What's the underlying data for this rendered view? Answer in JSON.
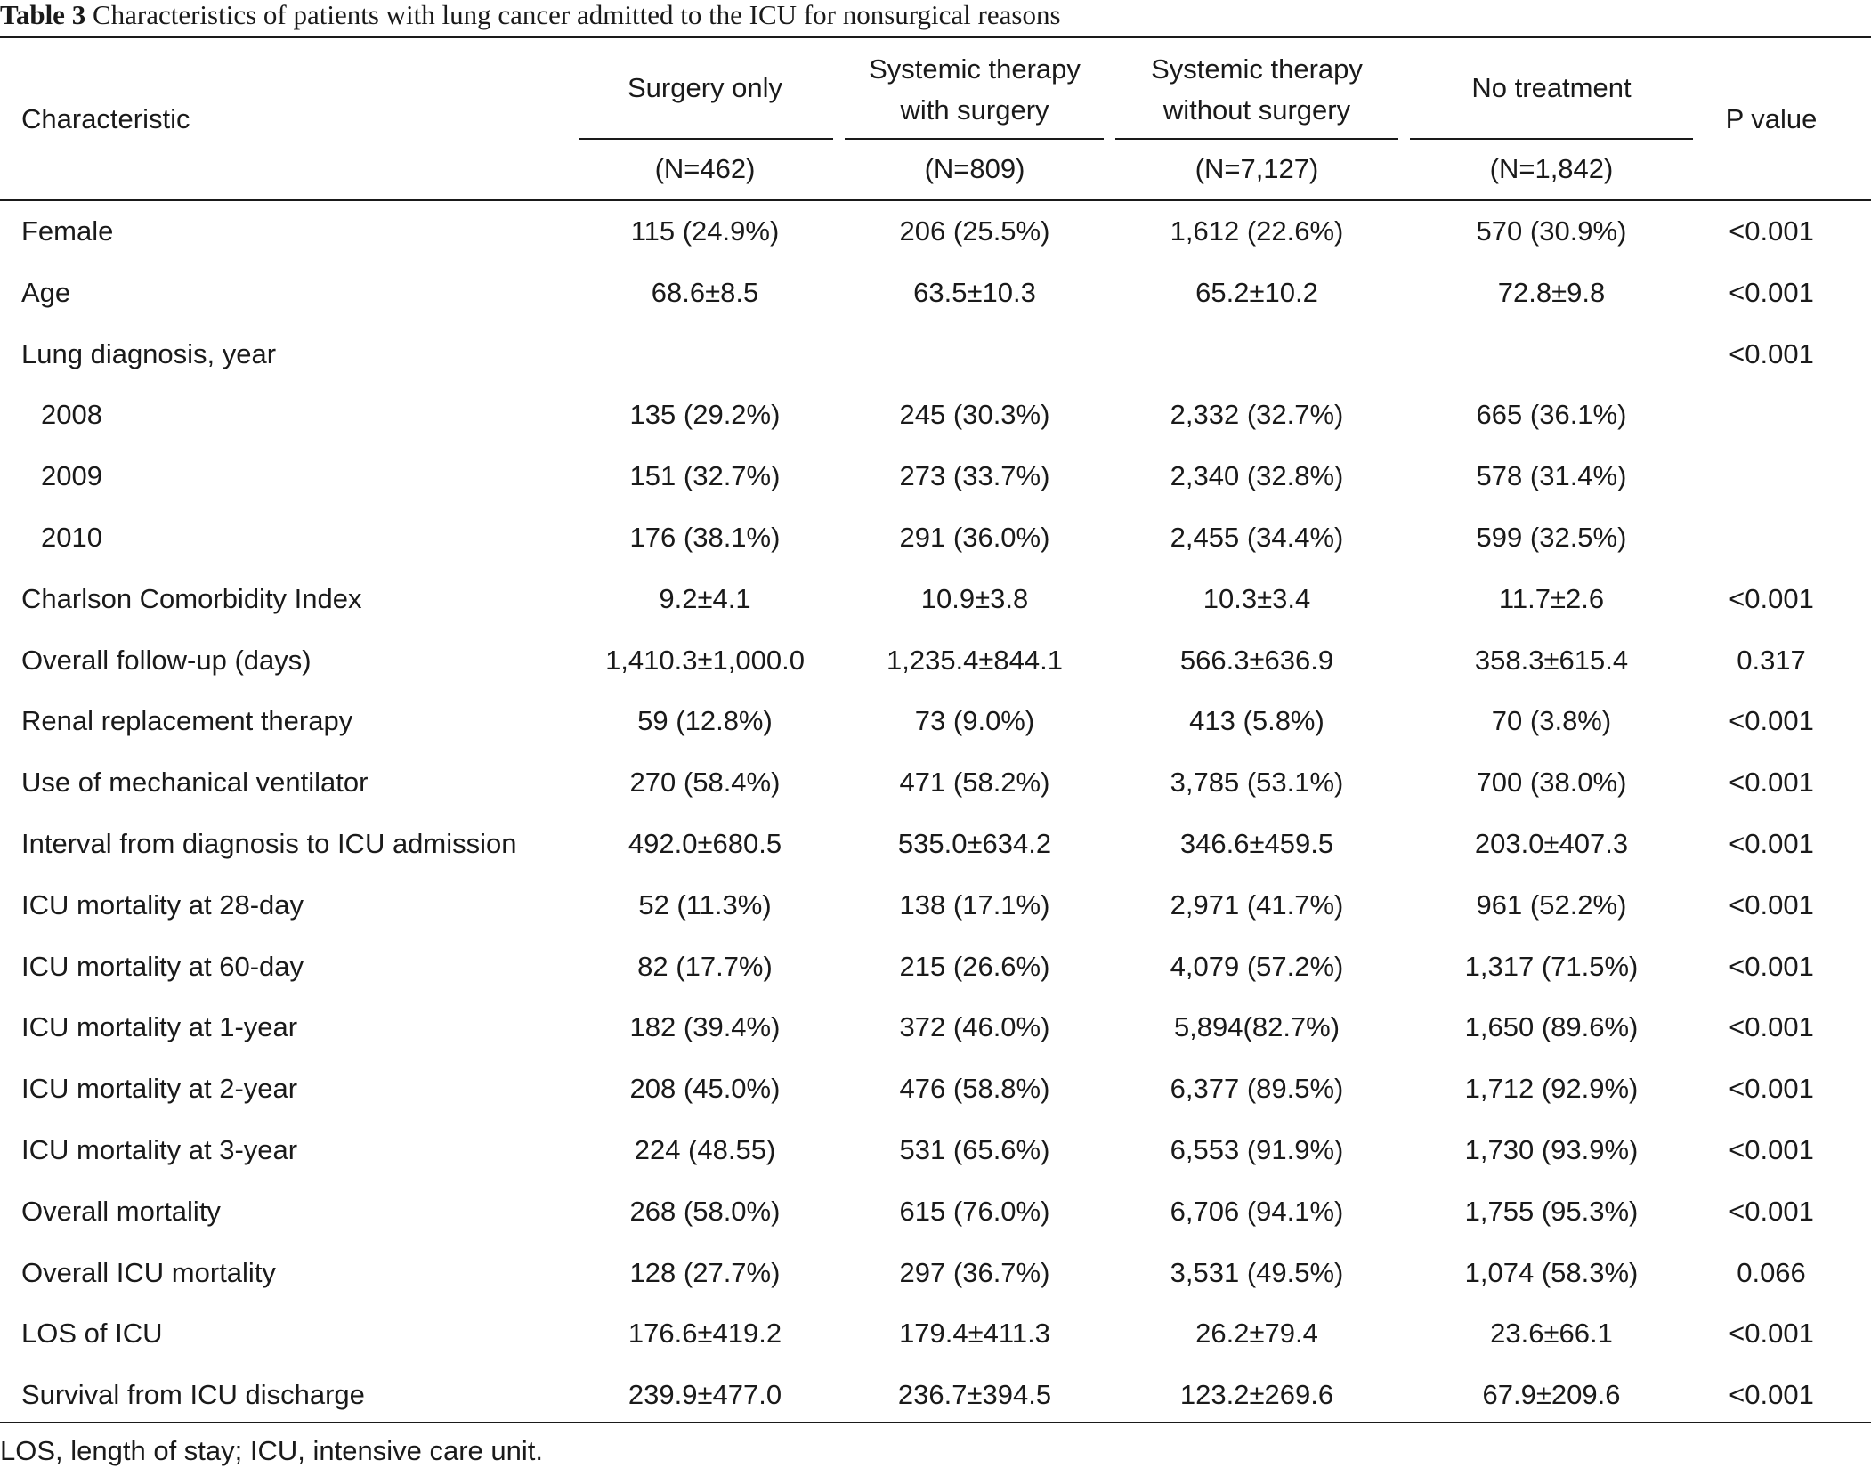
{
  "caption": {
    "label": "Table 3",
    "text": " Characteristics of patients with lung cancer admitted to the ICU for nonsurgical reasons"
  },
  "header": {
    "characteristic": "Characteristic",
    "groups": [
      {
        "name_line1": "Surgery only",
        "name_line2": "",
        "n": "(N=462)"
      },
      {
        "name_line1": "Systemic therapy",
        "name_line2": "with surgery",
        "n": "(N=809)"
      },
      {
        "name_line1": "Systemic therapy",
        "name_line2": "without surgery",
        "n": "(N=7,127)"
      },
      {
        "name_line1": "No treatment",
        "name_line2": "",
        "n": "(N=1,842)"
      }
    ],
    "p_value": "P value"
  },
  "rows": [
    {
      "label": "Female",
      "indent": false,
      "values": [
        "115 (24.9%)",
        "206 (25.5%)",
        "1,612 (22.6%)",
        "570 (30.9%)"
      ],
      "p": "<0.001"
    },
    {
      "label": "Age",
      "indent": false,
      "values": [
        "68.6±8.5",
        "63.5±10.3",
        "65.2±10.2",
        "72.8±9.8"
      ],
      "p": "<0.001"
    },
    {
      "label": "Lung diagnosis, year",
      "indent": false,
      "values": [
        "",
        "",
        "",
        ""
      ],
      "p": "<0.001"
    },
    {
      "label": "2008",
      "indent": true,
      "values": [
        "135 (29.2%)",
        "245 (30.3%)",
        "2,332 (32.7%)",
        "665 (36.1%)"
      ],
      "p": ""
    },
    {
      "label": "2009",
      "indent": true,
      "values": [
        "151 (32.7%)",
        "273 (33.7%)",
        "2,340 (32.8%)",
        "578 (31.4%)"
      ],
      "p": ""
    },
    {
      "label": "2010",
      "indent": true,
      "values": [
        "176 (38.1%)",
        "291 (36.0%)",
        "2,455 (34.4%)",
        "599 (32.5%)"
      ],
      "p": ""
    },
    {
      "label": "Charlson Comorbidity Index",
      "indent": false,
      "values": [
        "9.2±4.1",
        "10.9±3.8",
        "10.3±3.4",
        "11.7±2.6"
      ],
      "p": "<0.001"
    },
    {
      "label": "Overall follow-up (days)",
      "indent": false,
      "values": [
        "1,410.3±1,000.0",
        "1,235.4±844.1",
        "566.3±636.9",
        "358.3±615.4"
      ],
      "p": "0.317"
    },
    {
      "label": "Renal replacement therapy",
      "indent": false,
      "values": [
        "59 (12.8%)",
        "73 (9.0%)",
        "413 (5.8%)",
        "70 (3.8%)"
      ],
      "p": "<0.001"
    },
    {
      "label": "Use of mechanical ventilator",
      "indent": false,
      "values": [
        "270 (58.4%)",
        "471 (58.2%)",
        "3,785 (53.1%)",
        "700 (38.0%)"
      ],
      "p": "<0.001"
    },
    {
      "label": "Interval from diagnosis to ICU admission",
      "indent": false,
      "values": [
        "492.0±680.5",
        "535.0±634.2",
        "346.6±459.5",
        "203.0±407.3"
      ],
      "p": "<0.001"
    },
    {
      "label": "ICU mortality at 28-day",
      "indent": false,
      "values": [
        "52 (11.3%)",
        "138 (17.1%)",
        "2,971 (41.7%)",
        "961 (52.2%)"
      ],
      "p": "<0.001"
    },
    {
      "label": "ICU mortality at 60-day",
      "indent": false,
      "values": [
        "82 (17.7%)",
        "215 (26.6%)",
        "4,079 (57.2%)",
        "1,317 (71.5%)"
      ],
      "p": "<0.001"
    },
    {
      "label": "ICU mortality at 1-year",
      "indent": false,
      "values": [
        "182 (39.4%)",
        "372 (46.0%)",
        "5,894(82.7%)",
        "1,650 (89.6%)"
      ],
      "p": "<0.001"
    },
    {
      "label": "ICU mortality at 2-year",
      "indent": false,
      "values": [
        "208 (45.0%)",
        "476 (58.8%)",
        "6,377 (89.5%)",
        "1,712 (92.9%)"
      ],
      "p": "<0.001"
    },
    {
      "label": "ICU mortality at 3-year",
      "indent": false,
      "values": [
        "224 (48.55)",
        "531 (65.6%)",
        "6,553 (91.9%)",
        "1,730 (93.9%)"
      ],
      "p": "<0.001"
    },
    {
      "label": "Overall mortality",
      "indent": false,
      "values": [
        "268 (58.0%)",
        "615 (76.0%)",
        "6,706 (94.1%)",
        "1,755 (95.3%)"
      ],
      "p": "<0.001"
    },
    {
      "label": "Overall ICU mortality",
      "indent": false,
      "values": [
        "128 (27.7%)",
        "297 (36.7%)",
        "3,531 (49.5%)",
        "1,074 (58.3%)"
      ],
      "p": "0.066"
    },
    {
      "label": "LOS of ICU",
      "indent": false,
      "values": [
        "176.6±419.2",
        "179.4±411.3",
        "26.2±79.4",
        "23.6±66.1"
      ],
      "p": "<0.001"
    },
    {
      "label": "Survival from ICU discharge",
      "indent": false,
      "values": [
        "239.9±477.0",
        "236.7±394.5",
        "123.2±269.6",
        "67.9±209.6"
      ],
      "p": "<0.001"
    }
  ],
  "footnote": "LOS, length of stay; ICU, intensive care unit."
}
